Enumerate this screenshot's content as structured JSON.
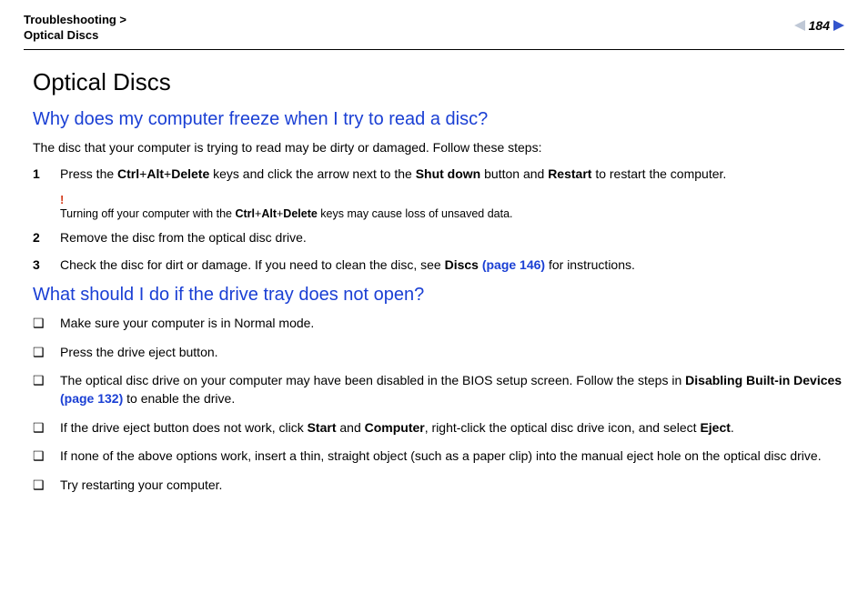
{
  "header": {
    "breadcrumb_line1": "Troubleshooting >",
    "breadcrumb_line2": "Optical Discs",
    "page_number": "184"
  },
  "colors": {
    "heading_blue": "#1a3fd4",
    "warning_red": "#d43a1a",
    "arrow_prev": "#bfc8d6",
    "arrow_next": "#3355cc"
  },
  "title": "Optical Discs",
  "section1": {
    "heading": "Why does my computer freeze when I try to read a disc?",
    "intro": "The disc that your computer is trying to read may be dirty or damaged. Follow these steps:",
    "steps": [
      {
        "num": "1",
        "pre": "Press the ",
        "k1": "Ctrl",
        "plus1": "+",
        "k2": "Alt",
        "plus2": "+",
        "k3": "Delete",
        "mid1": " keys and click the arrow next to the ",
        "k4": "Shut down",
        "mid2": " button and ",
        "k5": "Restart",
        "post": " to restart the computer."
      },
      {
        "num": "2",
        "text": "Remove the disc from the optical disc drive."
      },
      {
        "num": "3",
        "pre": "Check the disc for dirt or damage. If you need to clean the disc, see ",
        "linklabel": "Discs",
        "linkpage": " (page 146)",
        "post": " for instructions."
      }
    ],
    "note": {
      "bang": "!",
      "pre": "Turning off your computer with the ",
      "k1": "Ctrl",
      "plus1": "+",
      "k2": "Alt",
      "plus2": "+",
      "k3": "Delete",
      "post": " keys may cause loss of unsaved data."
    }
  },
  "section2": {
    "heading": "What should I do if the drive tray does not open?",
    "bullets": [
      {
        "text": "Make sure your computer is in Normal mode."
      },
      {
        "text": "Press the drive eject button."
      },
      {
        "pre": "The optical disc drive on your computer may have been disabled in the BIOS setup screen. Follow the steps in ",
        "linklabel": "Disabling Built-in Devices",
        "linkpage": " (page 132)",
        "post": " to enable the drive."
      },
      {
        "pre": "If the drive eject button does not work, click ",
        "k1": "Start",
        "mid1": " and ",
        "k2": "Computer",
        "mid2": ", right-click the optical disc drive icon, and select ",
        "k3": "Eject",
        "post": "."
      },
      {
        "text": "If none of the above options work, insert a thin, straight object (such as a paper clip) into the manual eject hole on the optical disc drive."
      },
      {
        "text": "Try restarting your computer."
      }
    ]
  }
}
